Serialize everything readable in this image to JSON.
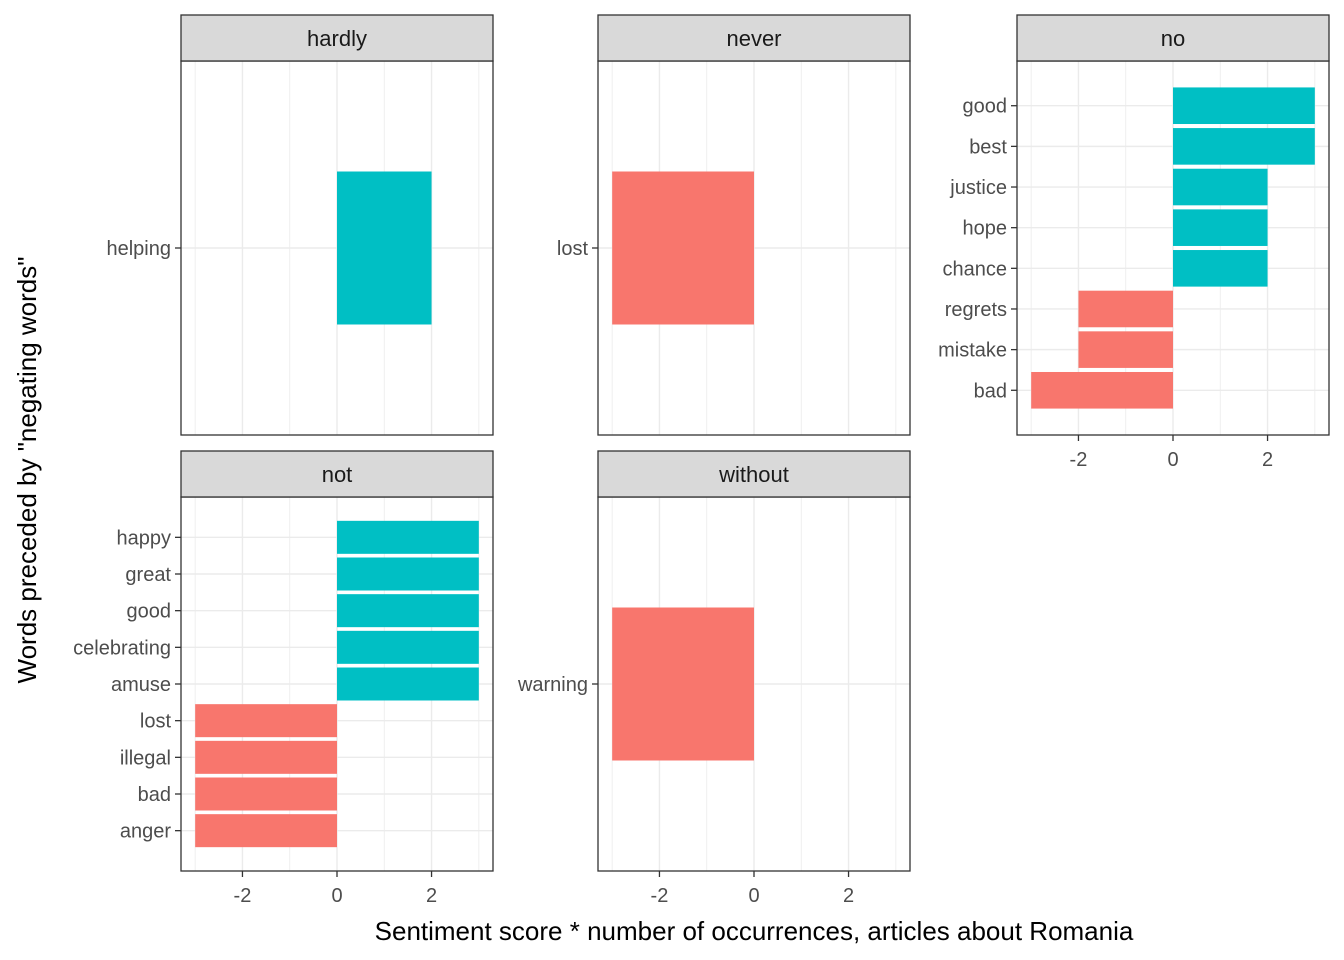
{
  "chart_data": {
    "type": "bar",
    "orientation": "horizontal",
    "layout": "facet-wrap 3 columns",
    "xlabel": "Sentiment score * number of occurrences, articles about Romania",
    "ylabel": "Words preceded by \"negating words\"",
    "xlim": [
      -3.3,
      3.3
    ],
    "x_ticks": [
      -2,
      0,
      2
    ],
    "x_tick_labels": [
      "-2",
      "0",
      "2"
    ],
    "grid": true,
    "legend": "none",
    "colors": {
      "negative": "#F8766D",
      "positive": "#00BFC4",
      "strip_bg": "#D9D9D9",
      "grid": "#EBEBEB",
      "border": "#333333"
    },
    "facets": [
      {
        "name": "hardly",
        "words": [
          "helping"
        ],
        "values": [
          2
        ]
      },
      {
        "name": "never",
        "words": [
          "lost"
        ],
        "values": [
          -3
        ]
      },
      {
        "name": "no",
        "words": [
          "good",
          "best",
          "justice",
          "hope",
          "chance",
          "regrets",
          "mistake",
          "bad"
        ],
        "values": [
          3,
          3,
          2,
          2,
          2,
          -2,
          -2,
          -3
        ]
      },
      {
        "name": "not",
        "words": [
          "happy",
          "great",
          "good",
          "celebrating",
          "amuse",
          "lost",
          "illegal",
          "bad",
          "anger"
        ],
        "values": [
          3,
          3,
          3,
          3,
          3,
          -3,
          -3,
          -3,
          -3
        ]
      },
      {
        "name": "without",
        "words": [
          "warning"
        ],
        "values": [
          -3
        ]
      }
    ]
  }
}
